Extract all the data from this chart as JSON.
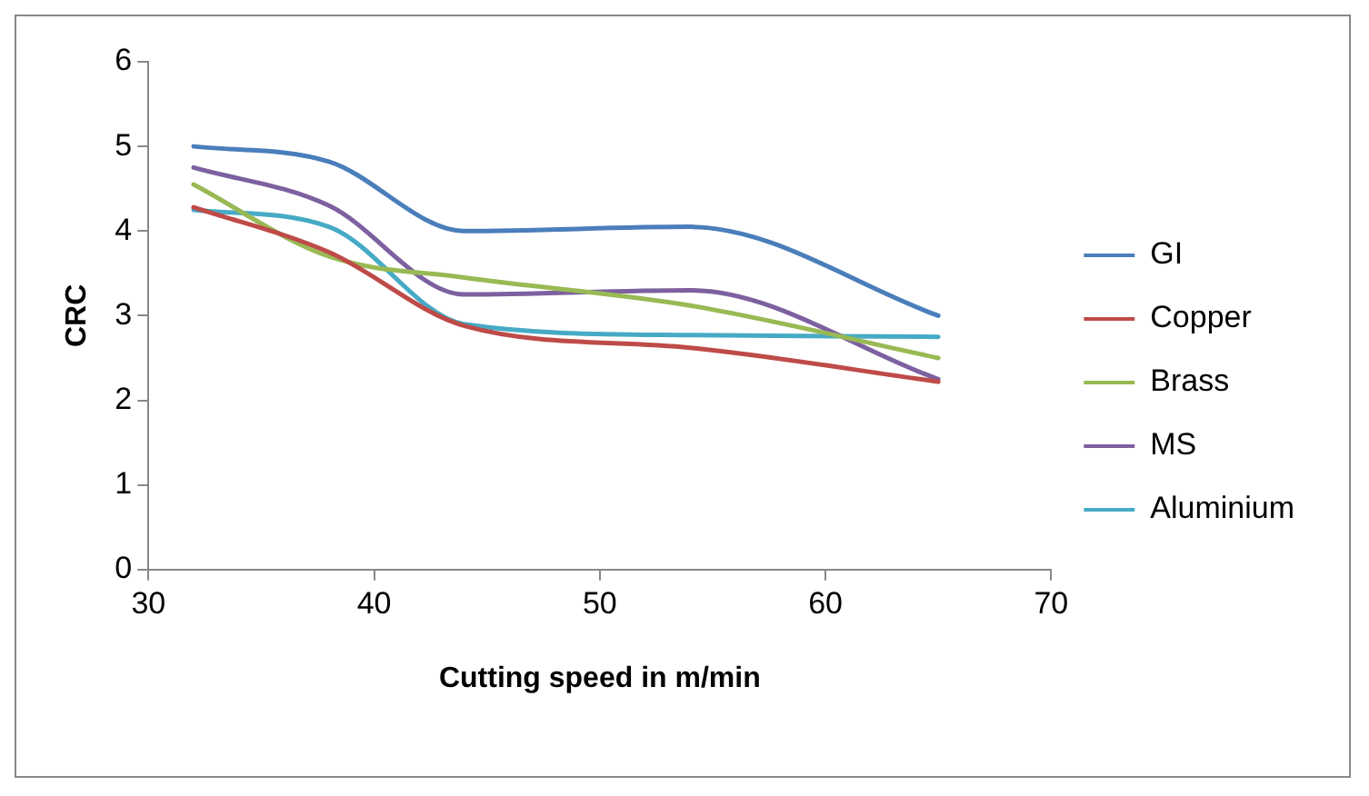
{
  "chart_data": {
    "type": "line",
    "xlabel": "Cutting speed in m/min",
    "ylabel": "CRC",
    "x": [
      32,
      38,
      44,
      54,
      65
    ],
    "xlim": [
      30,
      70
    ],
    "xticks": [
      30,
      40,
      50,
      60,
      70
    ],
    "ylim": [
      0,
      6
    ],
    "yticks": [
      0,
      1,
      2,
      3,
      4,
      5,
      6
    ],
    "grid": false,
    "legend": "right",
    "marker": "none",
    "line_style": "solid",
    "series": [
      {
        "name": "GI",
        "color": "#4a7ebb",
        "values": [
          5.0,
          4.82,
          4.0,
          4.05,
          3.0
        ]
      },
      {
        "name": "Copper",
        "color": "#be4b48",
        "values": [
          4.28,
          3.75,
          2.88,
          2.62,
          2.22
        ]
      },
      {
        "name": "Brass",
        "color": "#98b954",
        "values": [
          4.55,
          3.7,
          3.45,
          3.12,
          2.5
        ]
      },
      {
        "name": "MS",
        "color": "#7d60a0",
        "values": [
          4.75,
          4.3,
          3.25,
          3.3,
          2.25
        ]
      },
      {
        "name": "Aluminium",
        "color": "#46aac5",
        "values": [
          4.25,
          4.05,
          2.9,
          2.77,
          2.75
        ]
      }
    ]
  }
}
